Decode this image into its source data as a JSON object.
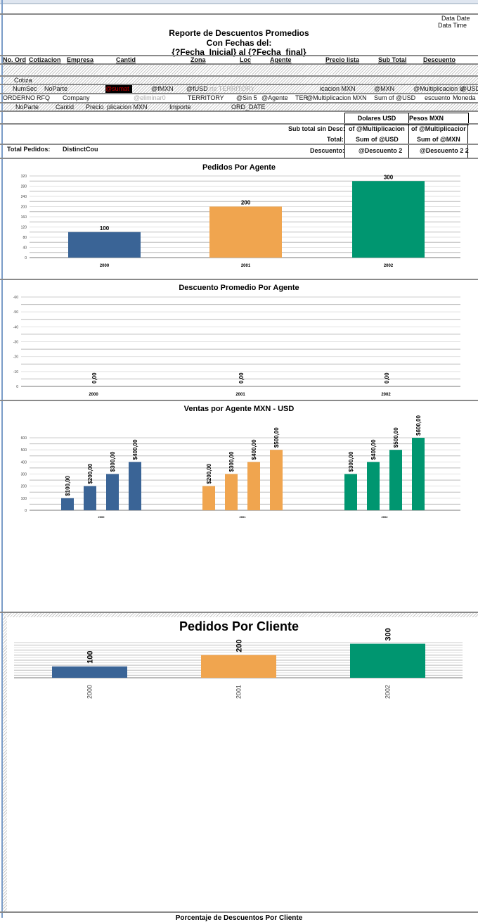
{
  "header": {
    "data_date": "Data Date",
    "data_time": "Data Time",
    "title1": "Reporte de Descuentos Promedios",
    "title2": "Con Fechas del:",
    "title3": "{?Fecha_Inicial} al {?Fecha_final}"
  },
  "columns": [
    "No. Ord",
    "Cotizacion",
    "Empresa",
    "Cantid",
    "Zona",
    "Loc",
    "Agente",
    "Precio lista",
    "Sub Total",
    "Descuento"
  ],
  "rows": {
    "cotiza": "Cotiza",
    "row1": [
      "NumSec",
      "NoParte",
      "@sumat",
      "@fMXN",
      "@fUSD",
      "rte TERRITORY",
      "icacion MXN",
      "@MXN",
      "@Multiplicacion U",
      "@USD"
    ],
    "row2": [
      "ORDERNO",
      "RFQ",
      "Company",
      "@eliminar0",
      "TERRITORY",
      "@Sin 5",
      "@Agente",
      "TER",
      "@Multiplicacion MXN",
      "Sum of @USD",
      "escuento",
      "Moneda"
    ],
    "row3": [
      "NoParte",
      "Cantid",
      "Precio",
      "plicacion MXN",
      "Importe",
      "ORD_DATE"
    ]
  },
  "summary": {
    "col_usd": "Dolares USD",
    "col_mxn": "Pesos MXN",
    "subtotal_label": "Sub total sin Desc:",
    "subtotal_usd": "of @Multiplicacion",
    "subtotal_mxn": "of @Multiplicacior",
    "total_label": "Total:",
    "total_usd": "Sum of @USD",
    "total_mxn": "Sum of @MXN",
    "descuento_label": "Descuento:",
    "descuento_usd": "@Descuento 2",
    "descuento_mxn": "@Descuento 2 2",
    "total_pedidos_label": "Total Pedidos:",
    "total_pedidos_value": "DistinctCou"
  },
  "bottom_title": "Porcentaje de Descuentos Por Cliente",
  "colors": {
    "blue": "#3a6496",
    "orange": "#f0a54f",
    "green": "#009670"
  },
  "chart_data": [
    {
      "type": "bar",
      "title": "Pedidos Por Agente",
      "categories": [
        "2000",
        "2001",
        "2002"
      ],
      "values": [
        100,
        200,
        300
      ],
      "labels": [
        "100",
        "200",
        "300"
      ],
      "ylim": [
        0,
        320
      ],
      "yticks": [
        0,
        40,
        80,
        120,
        160,
        200,
        240,
        280,
        320
      ],
      "grid": true
    },
    {
      "type": "bar",
      "title": "Descuento Promedio Por Agente",
      "categories": [
        "2000",
        "2001",
        "2002"
      ],
      "values": [
        0,
        0,
        0
      ],
      "labels": [
        "0,00",
        "0,00",
        "0,00"
      ],
      "ylim": [
        0,
        -60
      ],
      "yticks": [
        0,
        -10,
        -20,
        -30,
        -40,
        -50,
        -60
      ],
      "grid": true
    },
    {
      "type": "bar",
      "title": "Ventas por Agente MXN - USD",
      "categories": [
        "2000",
        "2001",
        "2002"
      ],
      "groups": [
        [
          100,
          200,
          300,
          400
        ],
        [
          200,
          300,
          400,
          500
        ],
        [
          300,
          400,
          500,
          600
        ]
      ],
      "labels": [
        [
          "$100,00",
          "$200,00",
          "$300,00",
          "$400,00"
        ],
        [
          "$200,00",
          "$300,00",
          "$400,00",
          "$500,00"
        ],
        [
          "$300,00",
          "$400,00",
          "$500,00",
          "$600,00"
        ]
      ],
      "ylim": [
        0,
        600
      ],
      "yticks": [
        0,
        100,
        200,
        300,
        400,
        500,
        600
      ],
      "grid": true
    },
    {
      "type": "bar",
      "title": "Pedidos Por Cliente",
      "categories": [
        "2000",
        "2001",
        "2002"
      ],
      "values": [
        100,
        200,
        300
      ],
      "labels": [
        "100",
        "200",
        "300"
      ],
      "ylim": [
        0,
        310
      ],
      "grid": true
    }
  ]
}
